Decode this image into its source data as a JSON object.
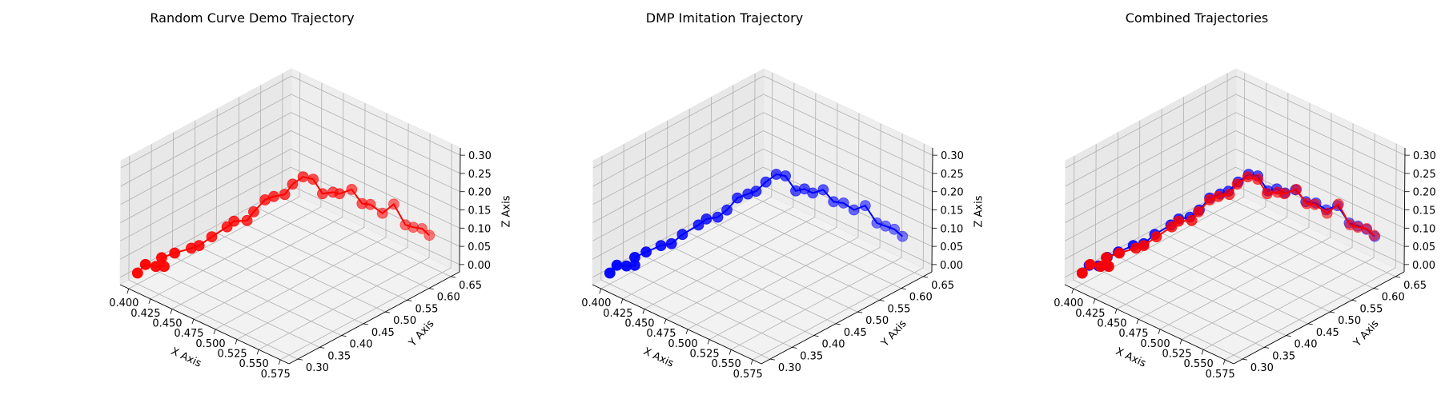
{
  "chart_data": [
    {
      "type": "scatter",
      "title": "Random Curve Demo Trajectory",
      "xlabel": "X Axis",
      "ylabel": "Y Axis",
      "zlabel": "Z Axis",
      "xlim": [
        0.39,
        0.585
      ],
      "ylim": [
        0.28,
        0.67
      ],
      "zlim": [
        -0.02,
        0.32
      ],
      "xticks": [
        "0.400",
        "0.425",
        "0.450",
        "0.475",
        "0.500",
        "0.525",
        "0.550",
        "0.575"
      ],
      "yticks": [
        "0.30",
        "0.35",
        "0.40",
        "0.45",
        "0.50",
        "0.55",
        "0.60",
        "0.65"
      ],
      "zticks": [
        "0.00",
        "0.05",
        "0.10",
        "0.15",
        "0.20",
        "0.25",
        "0.30"
      ],
      "grid": true,
      "series": [
        {
          "color": "#ff0000",
          "x": [
            0.4,
            0.403,
            0.412,
            0.418,
            0.411,
            0.42,
            0.433,
            0.436,
            0.445,
            0.456,
            0.458,
            0.467,
            0.469,
            0.476,
            0.48,
            0.487,
            0.49,
            0.496,
            0.502,
            0.507,
            0.513,
            0.515,
            0.523,
            0.529,
            0.533,
            0.541,
            0.548,
            0.556,
            0.559,
            0.563,
            0.566
          ],
          "y": [
            0.3,
            0.312,
            0.318,
            0.325,
            0.333,
            0.345,
            0.357,
            0.369,
            0.38,
            0.393,
            0.405,
            0.417,
            0.428,
            0.44,
            0.452,
            0.463,
            0.475,
            0.487,
            0.498,
            0.51,
            0.522,
            0.533,
            0.545,
            0.557,
            0.568,
            0.58,
            0.592,
            0.603,
            0.615,
            0.627,
            0.638
          ],
          "z": [
            0.01,
            0.029,
            0.03,
            0.032,
            0.043,
            0.058,
            0.078,
            0.081,
            0.108,
            0.139,
            0.149,
            0.153,
            0.172,
            0.205,
            0.211,
            0.217,
            0.241,
            0.26,
            0.253,
            0.211,
            0.214,
            0.205,
            0.218,
            0.178,
            0.173,
            0.15,
            0.175,
            0.12,
            0.109,
            0.102,
            0.08
          ]
        }
      ]
    },
    {
      "type": "scatter",
      "title": "DMP Imitation Trajectory",
      "xlabel": "X Axis",
      "ylabel": "Y Axis",
      "zlabel": "Z Axis",
      "xlim": [
        0.39,
        0.585
      ],
      "ylim": [
        0.28,
        0.67
      ],
      "zlim": [
        -0.02,
        0.32
      ],
      "xticks": [
        "0.400",
        "0.425",
        "0.450",
        "0.475",
        "0.500",
        "0.525",
        "0.550",
        "0.575"
      ],
      "yticks": [
        "0.30",
        "0.35",
        "0.40",
        "0.45",
        "0.50",
        "0.55",
        "0.60",
        "0.65"
      ],
      "zticks": [
        "0.00",
        "0.05",
        "0.10",
        "0.15",
        "0.20",
        "0.25",
        "0.30"
      ],
      "grid": true,
      "series": [
        {
          "color": "#0000ff",
          "x": [
            0.4,
            0.402,
            0.41,
            0.416,
            0.412,
            0.419,
            0.43,
            0.436,
            0.443,
            0.455,
            0.458,
            0.465,
            0.47,
            0.476,
            0.482,
            0.486,
            0.491,
            0.497,
            0.502,
            0.508,
            0.512,
            0.516,
            0.522,
            0.528,
            0.534,
            0.54,
            0.547,
            0.555,
            0.559,
            0.563,
            0.567
          ],
          "y": [
            0.3,
            0.312,
            0.318,
            0.325,
            0.333,
            0.345,
            0.357,
            0.369,
            0.38,
            0.393,
            0.405,
            0.417,
            0.428,
            0.44,
            0.452,
            0.463,
            0.475,
            0.487,
            0.498,
            0.51,
            0.522,
            0.533,
            0.545,
            0.557,
            0.568,
            0.58,
            0.592,
            0.603,
            0.615,
            0.627,
            0.638
          ],
          "z": [
            0.01,
            0.026,
            0.029,
            0.033,
            0.045,
            0.06,
            0.082,
            0.086,
            0.112,
            0.143,
            0.155,
            0.16,
            0.178,
            0.21,
            0.22,
            0.225,
            0.248,
            0.268,
            0.262,
            0.22,
            0.222,
            0.208,
            0.216,
            0.182,
            0.178,
            0.158,
            0.17,
            0.124,
            0.112,
            0.1,
            0.078
          ]
        }
      ]
    },
    {
      "type": "scatter",
      "title": "Combined Trajectories",
      "xlabel": "X Axis",
      "ylabel": "Y Axis",
      "zlabel": "Z Axis",
      "xlim": [
        0.39,
        0.585
      ],
      "ylim": [
        0.28,
        0.67
      ],
      "zlim": [
        -0.02,
        0.32
      ],
      "xticks": [
        "0.400",
        "0.425",
        "0.450",
        "0.475",
        "0.500",
        "0.525",
        "0.550",
        "0.575"
      ],
      "yticks": [
        "0.30",
        "0.35",
        "0.40",
        "0.45",
        "0.50",
        "0.55",
        "0.60",
        "0.65"
      ],
      "zticks": [
        "0.00",
        "0.05",
        "0.10",
        "0.15",
        "0.20",
        "0.25",
        "0.30"
      ],
      "grid": true,
      "series": [
        {
          "color": "#0000ff",
          "x": [
            0.4,
            0.402,
            0.41,
            0.416,
            0.412,
            0.419,
            0.43,
            0.436,
            0.443,
            0.455,
            0.458,
            0.465,
            0.47,
            0.476,
            0.482,
            0.486,
            0.491,
            0.497,
            0.502,
            0.508,
            0.512,
            0.516,
            0.522,
            0.528,
            0.534,
            0.54,
            0.547,
            0.555,
            0.559,
            0.563,
            0.567
          ],
          "y": [
            0.3,
            0.312,
            0.318,
            0.325,
            0.333,
            0.345,
            0.357,
            0.369,
            0.38,
            0.393,
            0.405,
            0.417,
            0.428,
            0.44,
            0.452,
            0.463,
            0.475,
            0.487,
            0.498,
            0.51,
            0.522,
            0.533,
            0.545,
            0.557,
            0.568,
            0.58,
            0.592,
            0.603,
            0.615,
            0.627,
            0.638
          ],
          "z": [
            0.01,
            0.026,
            0.029,
            0.033,
            0.045,
            0.06,
            0.082,
            0.086,
            0.112,
            0.143,
            0.155,
            0.16,
            0.178,
            0.21,
            0.22,
            0.225,
            0.248,
            0.268,
            0.262,
            0.22,
            0.222,
            0.208,
            0.216,
            0.182,
            0.178,
            0.158,
            0.17,
            0.124,
            0.112,
            0.1,
            0.078
          ]
        },
        {
          "color": "#ff0000",
          "x": [
            0.4,
            0.403,
            0.412,
            0.418,
            0.411,
            0.42,
            0.433,
            0.436,
            0.445,
            0.456,
            0.458,
            0.467,
            0.469,
            0.476,
            0.48,
            0.487,
            0.49,
            0.496,
            0.502,
            0.507,
            0.513,
            0.515,
            0.523,
            0.529,
            0.533,
            0.541,
            0.548,
            0.556,
            0.559,
            0.563,
            0.566
          ],
          "y": [
            0.3,
            0.312,
            0.318,
            0.325,
            0.333,
            0.345,
            0.357,
            0.369,
            0.38,
            0.393,
            0.405,
            0.417,
            0.428,
            0.44,
            0.452,
            0.463,
            0.475,
            0.487,
            0.498,
            0.51,
            0.522,
            0.533,
            0.545,
            0.557,
            0.568,
            0.58,
            0.592,
            0.603,
            0.615,
            0.627,
            0.638
          ],
          "z": [
            0.01,
            0.029,
            0.03,
            0.032,
            0.043,
            0.058,
            0.078,
            0.081,
            0.108,
            0.139,
            0.149,
            0.153,
            0.172,
            0.205,
            0.211,
            0.217,
            0.241,
            0.26,
            0.253,
            0.211,
            0.214,
            0.205,
            0.218,
            0.178,
            0.173,
            0.15,
            0.175,
            0.12,
            0.109,
            0.102,
            0.08
          ]
        }
      ]
    }
  ]
}
